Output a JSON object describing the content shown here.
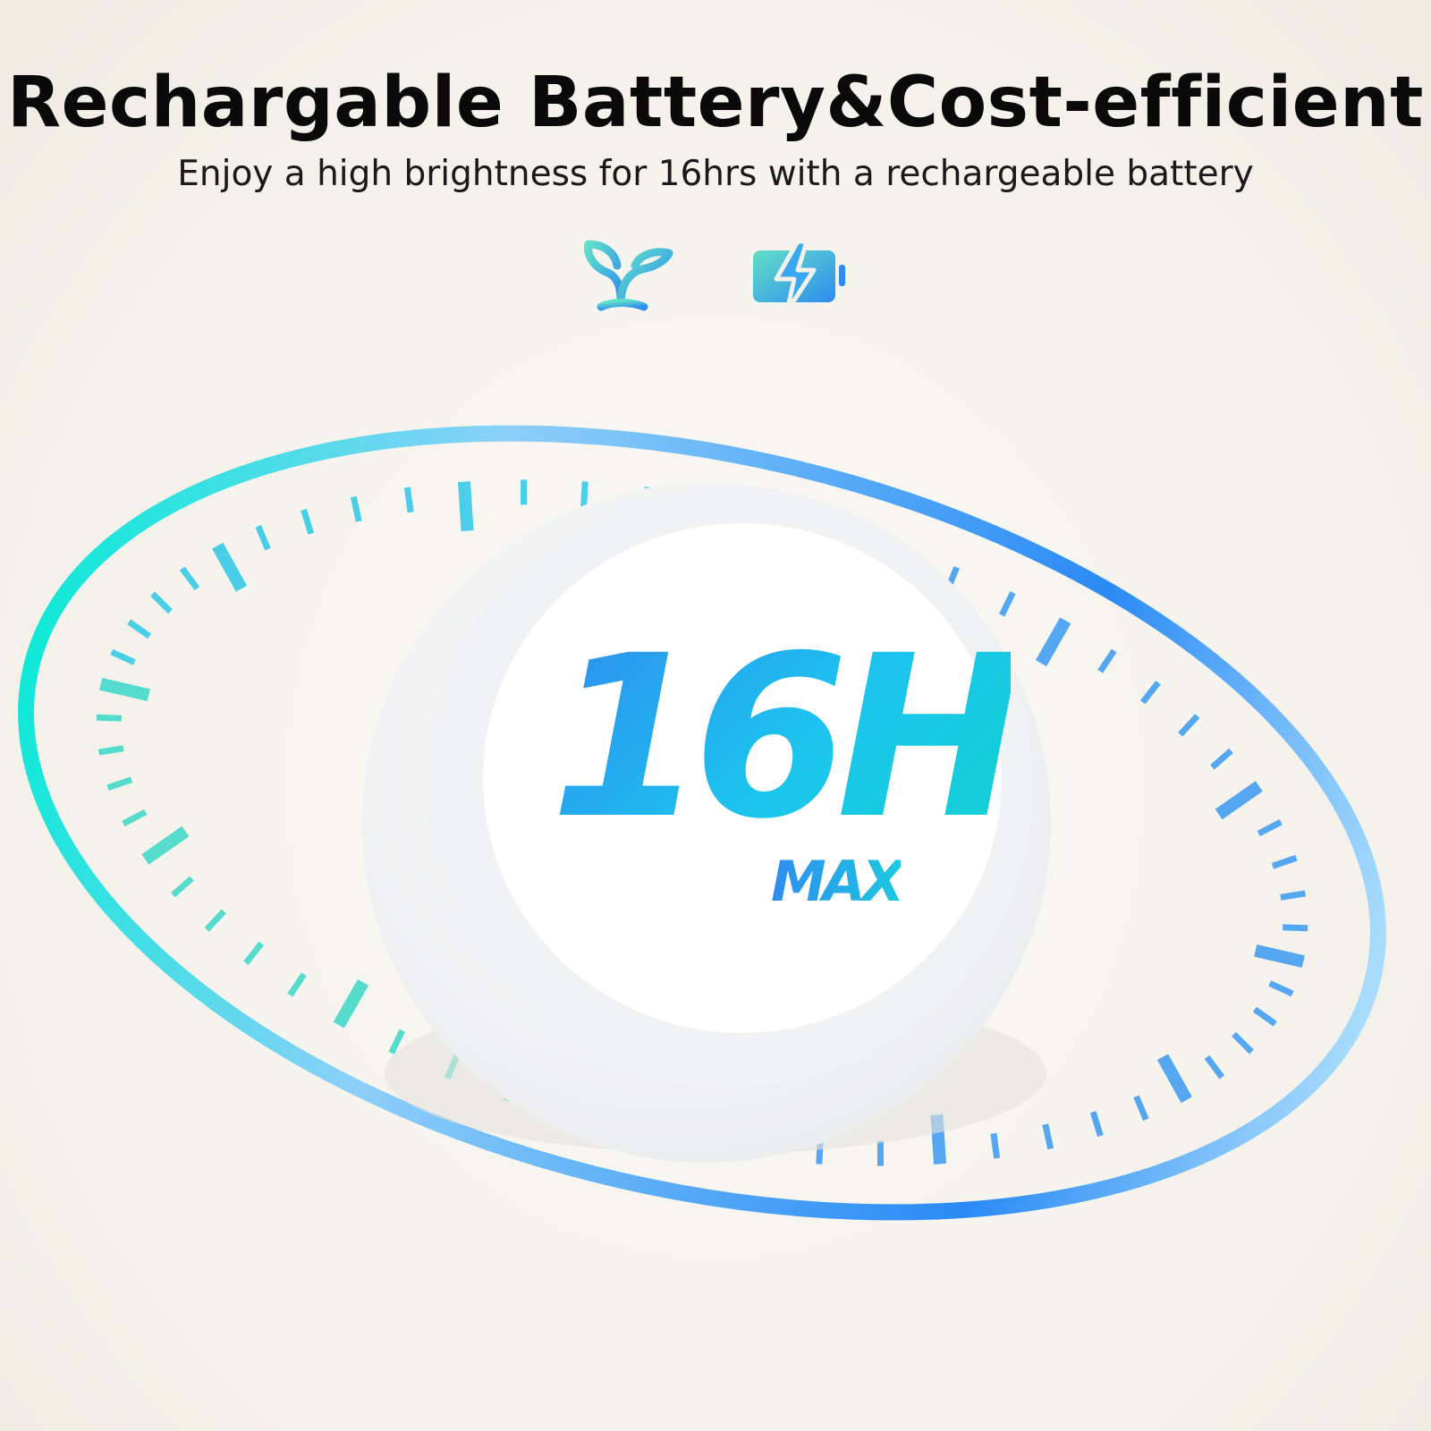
{
  "header": {
    "title": "Rechargable Battery&Cost-efficient",
    "subtitle": "Enjoy a high brightness for 16hrs with a rechargeable battery"
  },
  "icons": [
    "eco-sprout-icon",
    "battery-charging-icon"
  ],
  "badge": {
    "value": "16H",
    "label": "MAX"
  },
  "colors": {
    "accent_teal": "#12e0d0",
    "accent_blue": "#2f8cf0",
    "accent_green": "#5ee08a"
  }
}
